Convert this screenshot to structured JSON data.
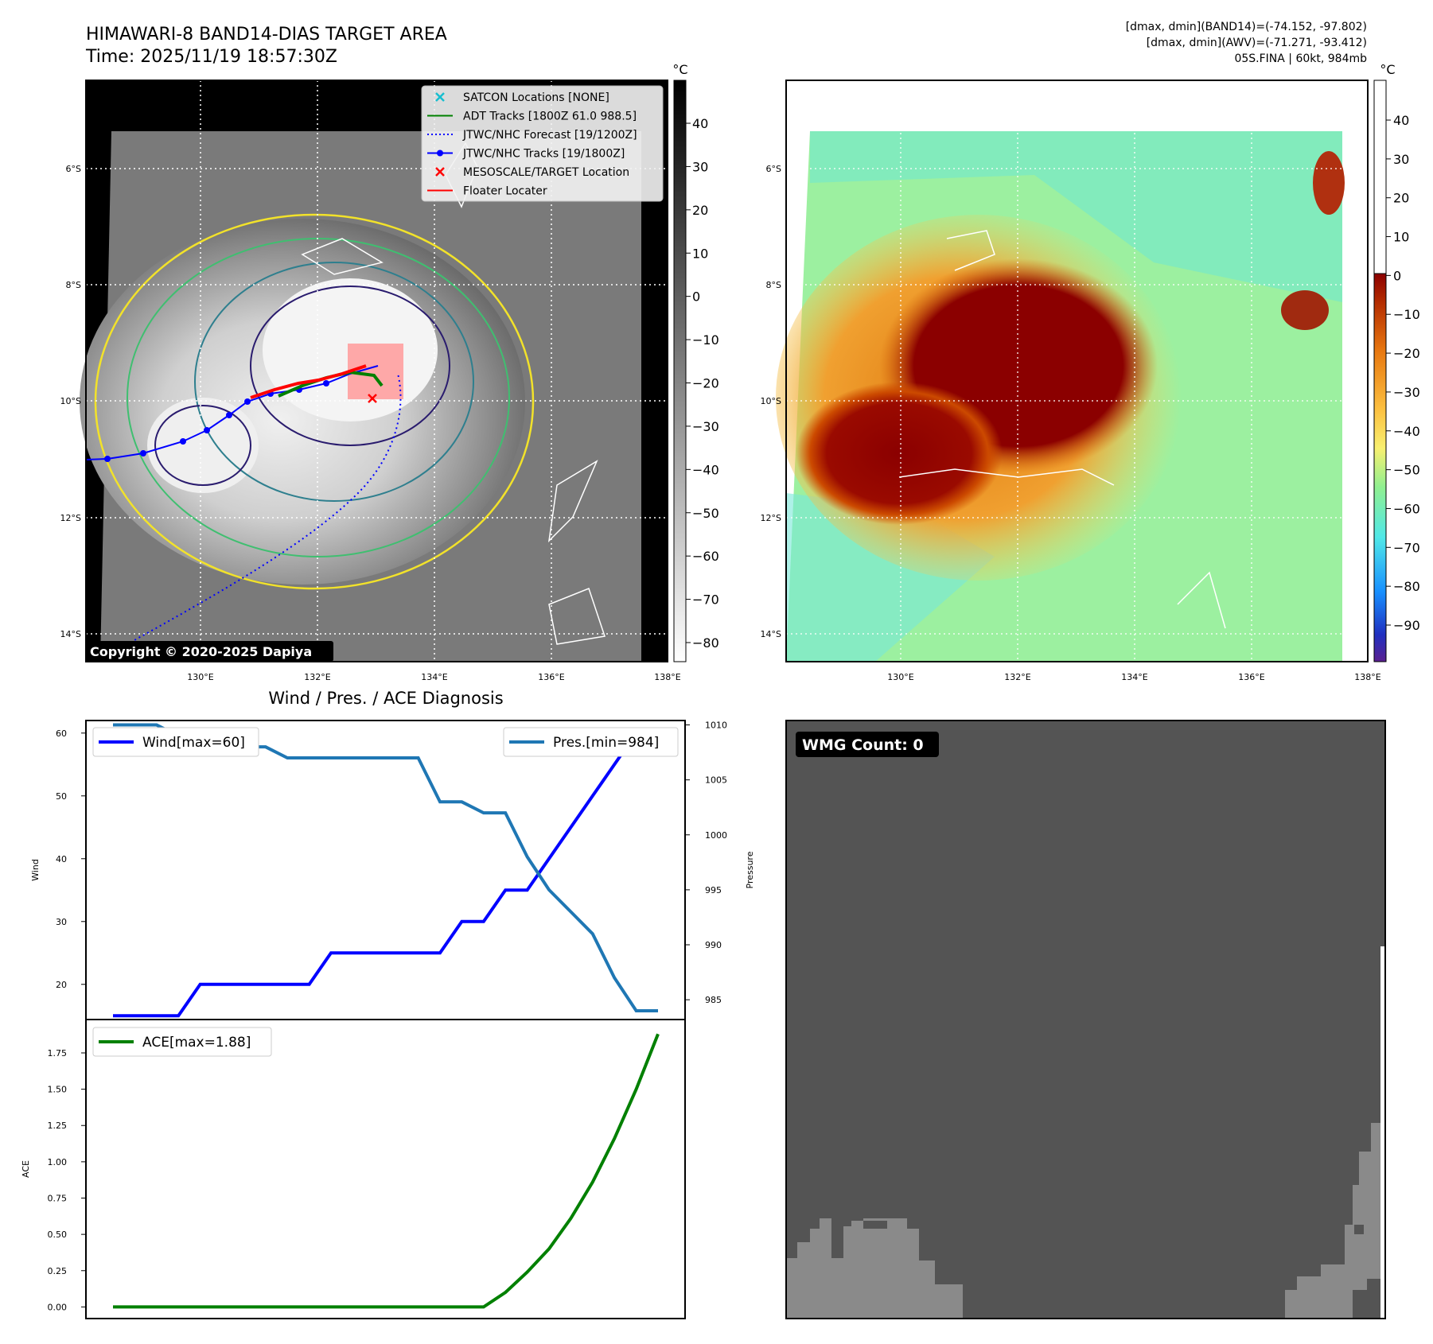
{
  "title_line1": "HIMAWARI-8 BAND14-DIAS TARGET AREA",
  "title_line2": "Time: 2025/11/19 18:57:30Z",
  "info_line1": "[dmax, dmin](BAND14)=(-74.152, -97.802)",
  "info_line2": "[dmax, dmin](AWV)=(-71.271, -93.412)",
  "info_line3": "05S.FINA | 60kt, 984mb",
  "copyright": "Copyright © 2020-2025 Dapiya",
  "cbar_unit": "°C",
  "lat_ticks": [
    "6°S",
    "8°S",
    "10°S",
    "12°S",
    "14°S"
  ],
  "lon_ticks": [
    "130°E",
    "132°E",
    "134°E",
    "136°E",
    "138°E"
  ],
  "cbar1_ticks": [
    "40",
    "30",
    "20",
    "10",
    "0",
    "−10",
    "−20",
    "−30",
    "−40",
    "−50",
    "−60",
    "−70",
    "−80"
  ],
  "cbar2_ticks": [
    "40",
    "30",
    "20",
    "10",
    "0",
    "−10",
    "−20",
    "−30",
    "−40",
    "−50",
    "−60",
    "−70",
    "−80",
    "−90"
  ],
  "map_legend": [
    {
      "label": "SATCON Locations [NONE]",
      "color": "#17becf",
      "kind": "x"
    },
    {
      "label": "ADT Tracks [1800Z 61.0 988.5]",
      "color": "#008000",
      "kind": "line"
    },
    {
      "label": "JTWC/NHC Forecast [19/1200Z]",
      "color": "#0000ff",
      "kind": "dotted"
    },
    {
      "label": "JTWC/NHC Tracks [19/1800Z]",
      "color": "#0000ff",
      "kind": "dotline"
    },
    {
      "label": "MESOSCALE/TARGET Location",
      "color": "#ff0000",
      "kind": "x"
    },
    {
      "label": "Floater Locater",
      "color": "#ff0000",
      "kind": "line"
    }
  ],
  "wmg_label": "WMG Count: 0",
  "chart_data": [
    {
      "type": "line",
      "title": "Wind / Pres. / ACE Diagnosis",
      "ylabel": "Wind",
      "y2label": "Pressure",
      "ylim": [
        14.4,
        62
      ],
      "y2lim": [
        983.2,
        1010.4
      ],
      "yticks": [
        20,
        30,
        40,
        50,
        60
      ],
      "y2ticks": [
        985,
        990,
        995,
        1000,
        1005,
        1010
      ],
      "x": [
        0,
        1,
        2,
        3,
        4,
        5,
        6,
        7,
        8,
        9,
        10,
        11,
        12,
        13,
        14,
        15,
        16,
        17,
        18,
        19,
        20,
        21,
        22,
        23,
        24,
        25
      ],
      "series": [
        {
          "name": "Wind[max=60]",
          "color": "#0000ff",
          "axis": "left",
          "values": [
            15,
            15,
            15,
            15,
            20,
            20,
            20,
            20,
            20,
            20,
            25,
            25,
            25,
            25,
            25,
            25,
            30,
            30,
            35,
            35,
            40,
            45,
            50,
            55,
            60,
            60
          ]
        },
        {
          "name": "Pres.[min=984]",
          "color": "#1f77b4",
          "axis": "right",
          "values": [
            1010,
            1010,
            1010,
            1009,
            1009,
            1009,
            1008,
            1008,
            1007,
            1007,
            1007,
            1007,
            1007,
            1007,
            1007,
            1003,
            1003,
            1002,
            1002,
            998,
            995,
            993,
            991,
            987,
            984,
            984
          ]
        }
      ],
      "legend": [
        "upper left",
        "upper right"
      ]
    },
    {
      "type": "line",
      "ylabel": "ACE",
      "ylim": [
        -0.08,
        1.98
      ],
      "yticks": [
        "0.00",
        "0.25",
        "0.50",
        "0.75",
        "1.00",
        "1.25",
        "1.50",
        "1.75"
      ],
      "x": [
        0,
        1,
        2,
        3,
        4,
        5,
        6,
        7,
        8,
        9,
        10,
        11,
        12,
        13,
        14,
        15,
        16,
        17,
        18,
        19,
        20,
        21,
        22,
        23,
        24,
        25
      ],
      "series": [
        {
          "name": "ACE[max=1.88]",
          "color": "#008000",
          "axis": "left",
          "values": [
            0,
            0,
            0,
            0,
            0,
            0,
            0,
            0,
            0,
            0,
            0,
            0,
            0,
            0,
            0,
            0,
            0,
            0,
            0.1,
            0.24,
            0.4,
            0.61,
            0.86,
            1.16,
            1.5,
            1.88
          ]
        }
      ],
      "legend": "upper left"
    }
  ]
}
